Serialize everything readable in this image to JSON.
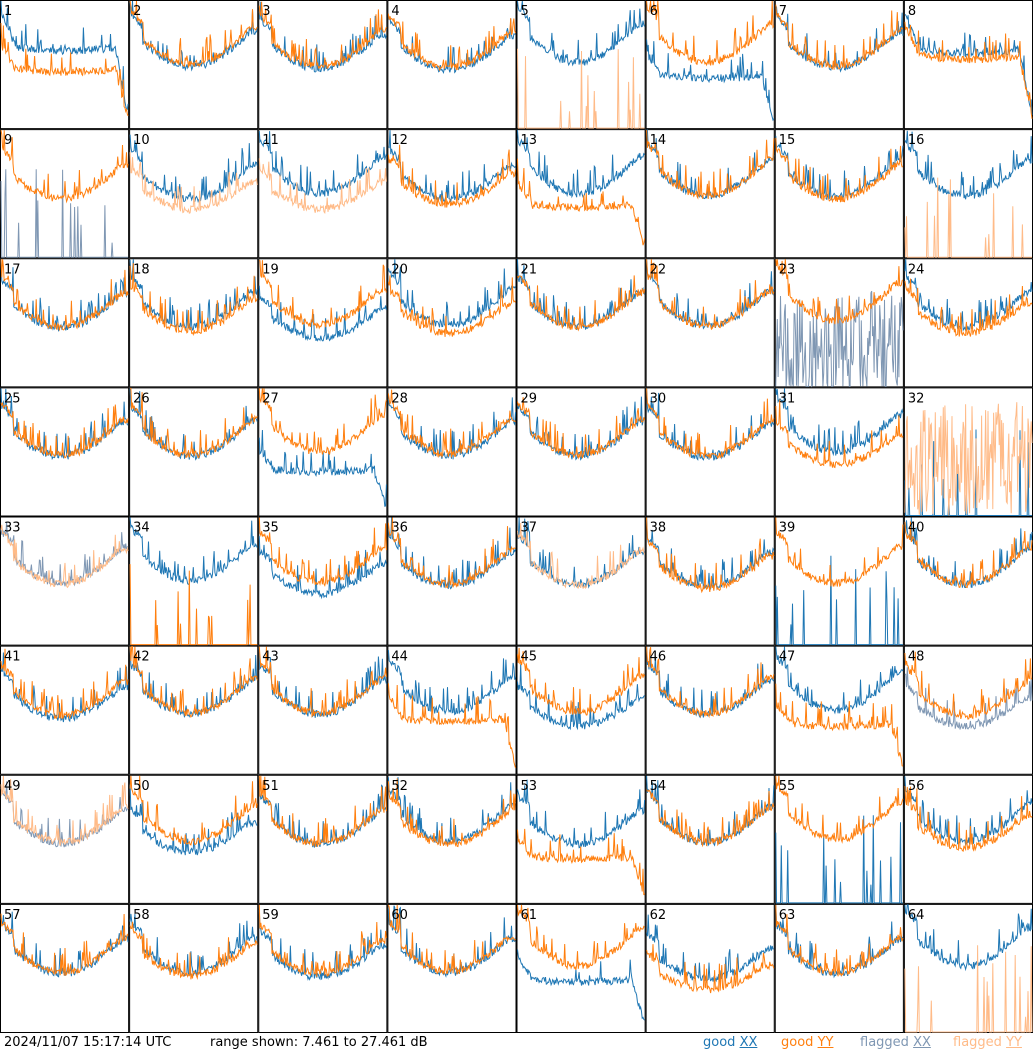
{
  "footer": {
    "timestamp": "2024/11/07 15:17:14 UTC",
    "range": "range shown: 7.461 to 27.461 dB"
  },
  "legend": [
    {
      "label": "good",
      "pol": "XX",
      "color": "#1f77b4"
    },
    {
      "label": "good",
      "pol": "YY",
      "color": "#ff7f0e"
    },
    {
      "label": "flagged",
      "pol": "XX",
      "color": "#7f97b3"
    },
    {
      "label": "flagged",
      "pol": "YY",
      "color": "#ffbb88"
    }
  ],
  "chart_data": {
    "type": "line",
    "layout": "8x8 small multiples, one panel per antenna",
    "y_range_db": [
      7.461,
      27.461
    ],
    "series_colors": {
      "good_xx": "#1f77b4",
      "good_yy": "#ff7f0e",
      "flagged_xx": "#7f97b3",
      "flagged_yy": "#ffbb88"
    },
    "panels": [
      {
        "id": "1",
        "xx": {
          "flag": false,
          "shape": "sag",
          "level": 0.62
        },
        "yy": {
          "flag": false,
          "shape": "sag",
          "level": 0.45
        }
      },
      {
        "id": "2",
        "xx": {
          "flag": false,
          "shape": "bowl",
          "level": 0.58
        },
        "yy": {
          "flag": false,
          "shape": "bowl",
          "level": 0.6
        }
      },
      {
        "id": "3",
        "xx": {
          "flag": false,
          "shape": "bowl",
          "level": 0.56
        },
        "yy": {
          "flag": false,
          "shape": "bowl",
          "level": 0.58
        }
      },
      {
        "id": "4",
        "xx": {
          "flag": false,
          "shape": "bowl",
          "level": 0.55
        },
        "yy": {
          "flag": false,
          "shape": "bowl",
          "level": 0.57
        }
      },
      {
        "id": "5",
        "xx": {
          "flag": false,
          "shape": "bowl",
          "level": 0.62
        },
        "yy": {
          "flag": true,
          "shape": "spikes",
          "level": 0.05
        }
      },
      {
        "id": "6",
        "xx": {
          "flag": false,
          "shape": "sag",
          "level": 0.4
        },
        "yy": {
          "flag": false,
          "shape": "bowl",
          "level": 0.62
        }
      },
      {
        "id": "7",
        "xx": {
          "flag": false,
          "shape": "bowl",
          "level": 0.57
        },
        "yy": {
          "flag": false,
          "shape": "bowl",
          "level": 0.58
        }
      },
      {
        "id": "8",
        "xx": {
          "flag": false,
          "shape": "sag",
          "level": 0.6
        },
        "yy": {
          "flag": false,
          "shape": "sag",
          "level": 0.55
        }
      },
      {
        "id": "9",
        "xx": {
          "flag": true,
          "shape": "spikes",
          "level": 0.05
        },
        "yy": {
          "flag": false,
          "shape": "bowl",
          "level": 0.55
        }
      },
      {
        "id": "10",
        "xx": {
          "flag": false,
          "shape": "bowl",
          "level": 0.55
        },
        "yy": {
          "flag": true,
          "shape": "bowl",
          "level": 0.45
        }
      },
      {
        "id": "11",
        "xx": {
          "flag": false,
          "shape": "bowl",
          "level": 0.6
        },
        "yy": {
          "flag": true,
          "shape": "bowl",
          "level": 0.45
        }
      },
      {
        "id": "12",
        "xx": {
          "flag": false,
          "shape": "bowl",
          "level": 0.55
        },
        "yy": {
          "flag": false,
          "shape": "bowl",
          "level": 0.5
        }
      },
      {
        "id": "13",
        "xx": {
          "flag": false,
          "shape": "bowl",
          "level": 0.6
        },
        "yy": {
          "flag": false,
          "shape": "sag",
          "level": 0.4
        }
      },
      {
        "id": "14",
        "xx": {
          "flag": false,
          "shape": "bowl",
          "level": 0.58
        },
        "yy": {
          "flag": false,
          "shape": "bowl",
          "level": 0.58
        }
      },
      {
        "id": "15",
        "xx": {
          "flag": false,
          "shape": "bowl",
          "level": 0.57
        },
        "yy": {
          "flag": false,
          "shape": "bowl",
          "level": 0.55
        }
      },
      {
        "id": "16",
        "xx": {
          "flag": false,
          "shape": "bowl",
          "level": 0.58
        },
        "yy": {
          "flag": true,
          "shape": "spikes",
          "level": 0.05
        }
      },
      {
        "id": "17",
        "xx": {
          "flag": false,
          "shape": "bowl",
          "level": 0.55
        },
        "yy": {
          "flag": false,
          "shape": "bowl",
          "level": 0.56
        }
      },
      {
        "id": "18",
        "xx": {
          "flag": false,
          "shape": "bowl",
          "level": 0.56
        },
        "yy": {
          "flag": false,
          "shape": "bowl",
          "level": 0.52
        }
      },
      {
        "id": "19",
        "xx": {
          "flag": false,
          "shape": "bowl",
          "level": 0.46
        },
        "yy": {
          "flag": false,
          "shape": "bowl",
          "level": 0.58
        }
      },
      {
        "id": "20",
        "xx": {
          "flag": false,
          "shape": "bowl",
          "level": 0.58
        },
        "yy": {
          "flag": false,
          "shape": "bowl",
          "level": 0.5
        }
      },
      {
        "id": "21",
        "xx": {
          "flag": false,
          "shape": "bowl",
          "level": 0.56
        },
        "yy": {
          "flag": false,
          "shape": "bowl",
          "level": 0.56
        }
      },
      {
        "id": "22",
        "xx": {
          "flag": false,
          "shape": "bowl",
          "level": 0.57
        },
        "yy": {
          "flag": false,
          "shape": "bowl",
          "level": 0.57
        }
      },
      {
        "id": "23",
        "xx": {
          "flag": true,
          "shape": "noise",
          "level": 0.3
        },
        "yy": {
          "flag": false,
          "shape": "bowl",
          "level": 0.62
        }
      },
      {
        "id": "24",
        "xx": {
          "flag": false,
          "shape": "bowl",
          "level": 0.56
        },
        "yy": {
          "flag": false,
          "shape": "bowl",
          "level": 0.5
        }
      },
      {
        "id": "25",
        "xx": {
          "flag": false,
          "shape": "bowl",
          "level": 0.56
        },
        "yy": {
          "flag": false,
          "shape": "bowl",
          "level": 0.57
        }
      },
      {
        "id": "26",
        "xx": {
          "flag": false,
          "shape": "bowl",
          "level": 0.56
        },
        "yy": {
          "flag": false,
          "shape": "bowl",
          "level": 0.57
        }
      },
      {
        "id": "27",
        "xx": {
          "flag": false,
          "shape": "sag",
          "level": 0.35
        },
        "yy": {
          "flag": false,
          "shape": "bowl",
          "level": 0.6
        }
      },
      {
        "id": "28",
        "xx": {
          "flag": false,
          "shape": "bowl",
          "level": 0.56
        },
        "yy": {
          "flag": false,
          "shape": "bowl",
          "level": 0.58
        }
      },
      {
        "id": "29",
        "xx": {
          "flag": false,
          "shape": "bowl",
          "level": 0.56
        },
        "yy": {
          "flag": false,
          "shape": "bowl",
          "level": 0.57
        }
      },
      {
        "id": "30",
        "xx": {
          "flag": false,
          "shape": "bowl",
          "level": 0.55
        },
        "yy": {
          "flag": false,
          "shape": "bowl",
          "level": 0.56
        }
      },
      {
        "id": "31",
        "xx": {
          "flag": false,
          "shape": "bowl",
          "level": 0.6
        },
        "yy": {
          "flag": false,
          "shape": "bowl",
          "level": 0.48
        }
      },
      {
        "id": "32",
        "xx": {
          "flag": false,
          "shape": "spikes",
          "level": 0.05
        },
        "yy": {
          "flag": true,
          "shape": "noise",
          "level": 0.45
        }
      },
      {
        "id": "33",
        "xx": {
          "flag": true,
          "shape": "bowl",
          "level": 0.58
        },
        "yy": {
          "flag": true,
          "shape": "bowl",
          "level": 0.57
        }
      },
      {
        "id": "34",
        "xx": {
          "flag": false,
          "shape": "bowl",
          "level": 0.6
        },
        "yy": {
          "flag": false,
          "shape": "spikes",
          "level": 0.05
        }
      },
      {
        "id": "35",
        "xx": {
          "flag": false,
          "shape": "bowl",
          "level": 0.48
        },
        "yy": {
          "flag": false,
          "shape": "bowl",
          "level": 0.58
        }
      },
      {
        "id": "36",
        "xx": {
          "flag": false,
          "shape": "bowl",
          "level": 0.55
        },
        "yy": {
          "flag": false,
          "shape": "bowl",
          "level": 0.57
        }
      },
      {
        "id": "37",
        "xx": {
          "flag": false,
          "shape": "bowl",
          "level": 0.56
        },
        "yy": {
          "flag": true,
          "shape": "bowl",
          "level": 0.56
        }
      },
      {
        "id": "38",
        "xx": {
          "flag": false,
          "shape": "bowl",
          "level": 0.55
        },
        "yy": {
          "flag": false,
          "shape": "bowl",
          "level": 0.53
        }
      },
      {
        "id": "39",
        "xx": {
          "flag": false,
          "shape": "spikes",
          "level": 0.05
        },
        "yy": {
          "flag": false,
          "shape": "bowl",
          "level": 0.58
        }
      },
      {
        "id": "40",
        "xx": {
          "flag": false,
          "shape": "bowl",
          "level": 0.57
        },
        "yy": {
          "flag": false,
          "shape": "bowl",
          "level": 0.57
        }
      },
      {
        "id": "41",
        "xx": {
          "flag": false,
          "shape": "bowl",
          "level": 0.52
        },
        "yy": {
          "flag": false,
          "shape": "bowl",
          "level": 0.55
        }
      },
      {
        "id": "42",
        "xx": {
          "flag": false,
          "shape": "bowl",
          "level": 0.56
        },
        "yy": {
          "flag": false,
          "shape": "bowl",
          "level": 0.57
        }
      },
      {
        "id": "43",
        "xx": {
          "flag": false,
          "shape": "bowl",
          "level": 0.56
        },
        "yy": {
          "flag": false,
          "shape": "bowl",
          "level": 0.57
        }
      },
      {
        "id": "44",
        "xx": {
          "flag": false,
          "shape": "bowl",
          "level": 0.58
        },
        "yy": {
          "flag": false,
          "shape": "sag",
          "level": 0.42
        }
      },
      {
        "id": "45",
        "xx": {
          "flag": false,
          "shape": "bowl",
          "level": 0.45
        },
        "yy": {
          "flag": false,
          "shape": "bowl",
          "level": 0.58
        }
      },
      {
        "id": "46",
        "xx": {
          "flag": false,
          "shape": "bowl",
          "level": 0.56
        },
        "yy": {
          "flag": false,
          "shape": "bowl",
          "level": 0.57
        }
      },
      {
        "id": "47",
        "xx": {
          "flag": false,
          "shape": "bowl",
          "level": 0.6
        },
        "yy": {
          "flag": false,
          "shape": "sag",
          "level": 0.38
        }
      },
      {
        "id": "48",
        "xx": {
          "flag": true,
          "shape": "bowl",
          "level": 0.45
        },
        "yy": {
          "flag": false,
          "shape": "bowl",
          "level": 0.55
        }
      },
      {
        "id": "49",
        "xx": {
          "flag": true,
          "shape": "bowl",
          "level": 0.56
        },
        "yy": {
          "flag": true,
          "shape": "bowl",
          "level": 0.57
        }
      },
      {
        "id": "50",
        "xx": {
          "flag": false,
          "shape": "bowl",
          "level": 0.48
        },
        "yy": {
          "flag": false,
          "shape": "bowl",
          "level": 0.58
        }
      },
      {
        "id": "51",
        "xx": {
          "flag": false,
          "shape": "bowl",
          "level": 0.55
        },
        "yy": {
          "flag": false,
          "shape": "bowl",
          "level": 0.56
        }
      },
      {
        "id": "52",
        "xx": {
          "flag": false,
          "shape": "bowl",
          "level": 0.58
        },
        "yy": {
          "flag": false,
          "shape": "bowl",
          "level": 0.55
        }
      },
      {
        "id": "53",
        "xx": {
          "flag": false,
          "shape": "bowl",
          "level": 0.55
        },
        "yy": {
          "flag": false,
          "shape": "sag",
          "level": 0.35
        }
      },
      {
        "id": "54",
        "xx": {
          "flag": false,
          "shape": "bowl",
          "level": 0.57
        },
        "yy": {
          "flag": false,
          "shape": "bowl",
          "level": 0.57
        }
      },
      {
        "id": "55",
        "xx": {
          "flag": false,
          "shape": "spikes",
          "level": 0.05
        },
        "yy": {
          "flag": false,
          "shape": "bowl",
          "level": 0.6
        }
      },
      {
        "id": "56",
        "xx": {
          "flag": false,
          "shape": "bowl",
          "level": 0.58
        },
        "yy": {
          "flag": false,
          "shape": "bowl",
          "level": 0.52
        }
      },
      {
        "id": "57",
        "xx": {
          "flag": false,
          "shape": "bowl",
          "level": 0.55
        },
        "yy": {
          "flag": false,
          "shape": "bowl",
          "level": 0.56
        }
      },
      {
        "id": "58",
        "xx": {
          "flag": false,
          "shape": "bowl",
          "level": 0.56
        },
        "yy": {
          "flag": false,
          "shape": "bowl",
          "level": 0.53
        }
      },
      {
        "id": "59",
        "xx": {
          "flag": false,
          "shape": "bowl",
          "level": 0.52
        },
        "yy": {
          "flag": false,
          "shape": "bowl",
          "level": 0.55
        }
      },
      {
        "id": "60",
        "xx": {
          "flag": false,
          "shape": "bowl",
          "level": 0.56
        },
        "yy": {
          "flag": false,
          "shape": "bowl",
          "level": 0.57
        }
      },
      {
        "id": "61",
        "xx": {
          "flag": false,
          "shape": "sag",
          "level": 0.4
        },
        "yy": {
          "flag": false,
          "shape": "bowl",
          "level": 0.62
        }
      },
      {
        "id": "62",
        "xx": {
          "flag": false,
          "shape": "bowl",
          "level": 0.5
        },
        "yy": {
          "flag": false,
          "shape": "bowl",
          "level": 0.4
        }
      },
      {
        "id": "63",
        "xx": {
          "flag": false,
          "shape": "bowl",
          "level": 0.55
        },
        "yy": {
          "flag": false,
          "shape": "bowl",
          "level": 0.56
        }
      },
      {
        "id": "64",
        "xx": {
          "flag": false,
          "shape": "bowl",
          "level": 0.62
        },
        "yy": {
          "flag": true,
          "shape": "spikes",
          "level": 0.05
        }
      }
    ]
  }
}
